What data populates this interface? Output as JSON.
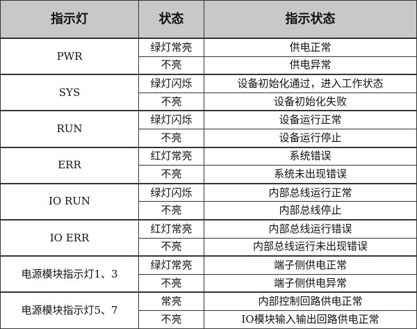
{
  "headers": [
    "指示灯",
    "状态",
    "指示状态"
  ],
  "groups": [
    {
      "indicator": "PWR",
      "rows": [
        {
          "state": "绿灯常亮",
          "meaning": "供电正常"
        },
        {
          "state": "不亮",
          "meaning": "供电异常"
        }
      ]
    },
    {
      "indicator": "SYS",
      "rows": [
        {
          "state": "绿灯闪烁",
          "meaning": "设备初始化通过，进入工作状态"
        },
        {
          "state": "不亮",
          "meaning": "设备初始化失败"
        }
      ]
    },
    {
      "indicator": "RUN",
      "rows": [
        {
          "state": "绿灯闪烁",
          "meaning": "设备运行正常"
        },
        {
          "state": "不亮",
          "meaning": "设备运行停止"
        }
      ]
    },
    {
      "indicator": "ERR",
      "rows": [
        {
          "state": "红灯常亮",
          "meaning": "系统错误"
        },
        {
          "state": "不亮",
          "meaning": "系统未出现错误"
        }
      ]
    },
    {
      "indicator": "IO RUN",
      "rows": [
        {
          "state": "绿灯闪烁",
          "meaning": "内部总线运行正常"
        },
        {
          "state": "不亮",
          "meaning": "内部总线停止"
        }
      ]
    },
    {
      "indicator": "IO ERR",
      "rows": [
        {
          "state": "红灯常亮",
          "meaning": "内部总线运行错误"
        },
        {
          "state": "不亮",
          "meaning": "内部总线运行未出现错误"
        }
      ]
    },
    {
      "indicator": "电源模块指示灯1、3",
      "rows": [
        {
          "state": "绿灯常亮",
          "meaning": "端子侧供电正常"
        },
        {
          "state": "不亮",
          "meaning": "端子侧供电异常"
        }
      ]
    },
    {
      "indicator": "电源模块指示灯5、7",
      "rows": [
        {
          "state": "常亮",
          "meaning": "内部控制回路供电正常"
        },
        {
          "state": "不亮",
          "meaning": "IO模块输入输出回路供电正常"
        }
      ]
    }
  ]
}
